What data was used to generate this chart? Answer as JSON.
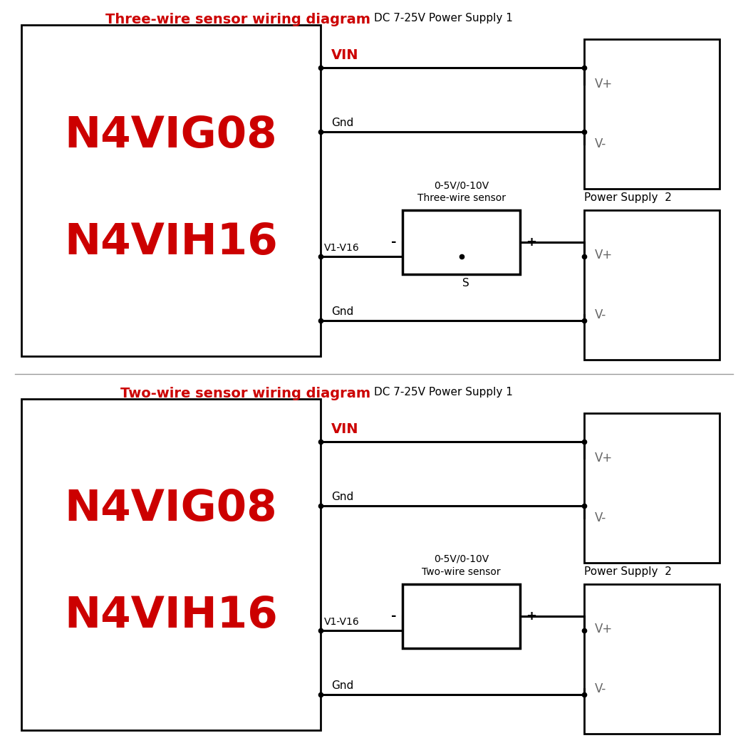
{
  "bg_color": "#ffffff",
  "line_color": "#000000",
  "red_color": "#cc0000",
  "title1": "Three-wire sensor wiring diagram",
  "title2": "Two-wire sensor wiring diagram",
  "subtitle": "DC 7-25V Power Supply 1",
  "ps2_label": "Power Supply  2",
  "model1": "N4VIG08",
  "model2": "N4VIH16",
  "vin_label": "VIN",
  "gnd_label": "Gnd",
  "v1v16_label": "V1-V16",
  "vplus": "V+",
  "vminus": "V-",
  "sensor_label_3w_1": "0-5V/0-10V",
  "sensor_label_3w_2": "Three-wire sensor",
  "sensor_label_2w_1": "0-5V/0-10V",
  "sensor_label_2w_2": "Two-wire sensor",
  "s_label": "S",
  "lw": 2.2,
  "dot_r": 4.5
}
